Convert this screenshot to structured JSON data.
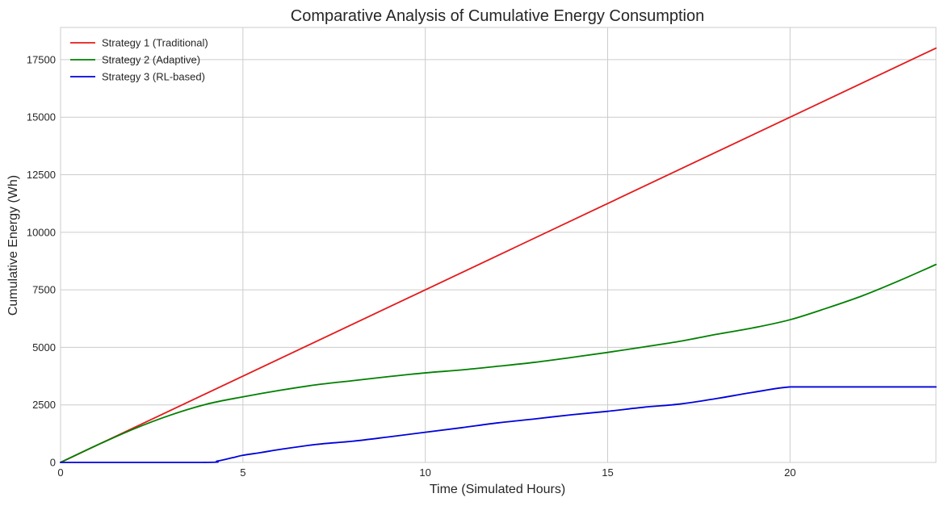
{
  "chart_data": {
    "type": "line",
    "title": "Comparative Analysis of Cumulative Energy Consumption",
    "xlabel": "Time (Simulated Hours)",
    "ylabel": "Cumulative Energy (Wh)",
    "xlim": [
      0,
      24
    ],
    "ylim": [
      0,
      18900
    ],
    "grid": true,
    "legend_position": "top-left",
    "xticks": [
      0,
      5,
      10,
      15,
      20
    ],
    "xtick_labels": [
      "0",
      "5",
      "10",
      "15",
      "20"
    ],
    "yticks": [
      0,
      2500,
      5000,
      7500,
      10000,
      12500,
      15000,
      17500
    ],
    "ytick_labels": [
      "0",
      "2500",
      "5000",
      "7500",
      "10000",
      "12500",
      "15000",
      "17500"
    ],
    "series": [
      {
        "name": "Strategy 1 (Traditional)",
        "color": "#e41a1c",
        "x": [
          0,
          24
        ],
        "y": [
          0,
          18000
        ]
      },
      {
        "name": "Strategy 2 (Adaptive)",
        "color": "#008000",
        "x": [
          0,
          1,
          2,
          3,
          4,
          5,
          6,
          7,
          8,
          9,
          10,
          11,
          12,
          13,
          14,
          15,
          16,
          17,
          18,
          19,
          20,
          21,
          22,
          23,
          24
        ],
        "y": [
          0,
          750,
          1450,
          2050,
          2530,
          2850,
          3130,
          3370,
          3550,
          3730,
          3890,
          4020,
          4180,
          4350,
          4560,
          4780,
          5020,
          5270,
          5570,
          5850,
          6200,
          6700,
          7250,
          7900,
          8600
        ]
      },
      {
        "name": "Strategy 3 (RL-based)",
        "color": "#0000dd",
        "x": [
          0,
          3.9,
          4.3,
          4.7,
          5,
          5.5,
          6,
          7,
          8,
          9,
          10,
          11,
          12,
          13,
          14,
          15,
          16,
          17,
          18,
          19,
          20,
          21,
          22,
          23,
          24
        ],
        "y": [
          0,
          0,
          60,
          200,
          310,
          430,
          560,
          780,
          920,
          1110,
          1310,
          1510,
          1720,
          1890,
          2070,
          2220,
          2400,
          2540,
          2780,
          3050,
          3280,
          3280,
          3280,
          3280,
          3280
        ]
      }
    ]
  }
}
